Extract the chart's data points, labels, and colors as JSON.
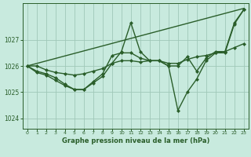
{
  "title": "Graphe pression niveau de la mer (hPa)",
  "bg_color": "#c8eade",
  "grid_color": "#a0c8b8",
  "line_color": "#2a5e2a",
  "xlim": [
    -0.5,
    23.5
  ],
  "ylim": [
    1023.6,
    1028.4
  ],
  "yticks": [
    1024,
    1025,
    1026,
    1027
  ],
  "xticks": [
    0,
    1,
    2,
    3,
    4,
    5,
    6,
    7,
    8,
    9,
    10,
    11,
    12,
    13,
    14,
    15,
    16,
    17,
    18,
    19,
    20,
    21,
    22,
    23
  ],
  "series": [
    {
      "x": [
        0,
        23
      ],
      "y": [
        1026.0,
        1028.2
      ],
      "marker": false,
      "ms": 0,
      "lw": 1.0
    },
    {
      "x": [
        0,
        1,
        2,
        3,
        4,
        5,
        6,
        7,
        8,
        9,
        10,
        11,
        12,
        13,
        14,
        15,
        16,
        17,
        18,
        19,
        20,
        21,
        22,
        23
      ],
      "y": [
        1026.0,
        1026.0,
        1025.85,
        1025.75,
        1025.7,
        1025.65,
        1025.7,
        1025.8,
        1025.9,
        1026.1,
        1026.2,
        1026.2,
        1026.15,
        1026.2,
        1026.2,
        1026.1,
        1026.1,
        1026.25,
        1026.35,
        1026.4,
        1026.5,
        1026.55,
        1026.7,
        1026.85
      ],
      "marker": "D",
      "ms": 2.0,
      "lw": 1.0
    },
    {
      "x": [
        0,
        1,
        2,
        3,
        4,
        5,
        6,
        7,
        8,
        9,
        10,
        11,
        12,
        13,
        14,
        15,
        16,
        17,
        18,
        19,
        20,
        21,
        22,
        23
      ],
      "y": [
        1026.0,
        1025.8,
        1025.7,
        1025.55,
        1025.3,
        1025.1,
        1025.1,
        1025.35,
        1025.6,
        1026.1,
        1026.55,
        1027.65,
        1026.55,
        1026.2,
        1026.2,
        1026.0,
        1024.3,
        1025.0,
        1025.5,
        1026.2,
        1026.5,
        1026.5,
        1027.6,
        1028.15
      ],
      "marker": "D",
      "ms": 2.0,
      "lw": 1.0
    },
    {
      "x": [
        0,
        1,
        2,
        3,
        4,
        5,
        6,
        7,
        8,
        9,
        10,
        11,
        12,
        13,
        14,
        15,
        16,
        17,
        18,
        19,
        20,
        21,
        22,
        23
      ],
      "y": [
        1026.0,
        1025.75,
        1025.65,
        1025.45,
        1025.25,
        1025.1,
        1025.1,
        1025.4,
        1025.7,
        1026.4,
        1026.5,
        1026.5,
        1026.3,
        1026.2,
        1026.2,
        1026.0,
        1026.0,
        1026.35,
        1025.8,
        1026.3,
        1026.55,
        1026.55,
        1027.65,
        1028.15
      ],
      "marker": "D",
      "ms": 2.0,
      "lw": 1.0
    }
  ]
}
